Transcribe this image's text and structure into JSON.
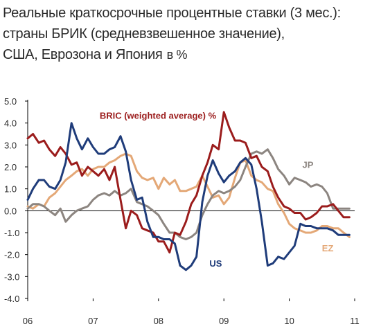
{
  "title": {
    "line1": "Реальные краткосрочные процентные ставки (3 мес.):",
    "line2": "страны БРИК (средневзвешенное значение),",
    "line3": "США, Еврозона и Япония",
    "unit": "в %"
  },
  "chart_data": {
    "type": "line",
    "ylim": [
      -4.0,
      5.0
    ],
    "yticks": [
      "5.0",
      "4.0",
      "3.0",
      "2.0",
      "1.0",
      "0.0",
      "-1.0",
      "-2.0",
      "-3.0",
      "-4.0"
    ],
    "xlim": [
      2006.0,
      2011.0
    ],
    "xticks": [
      "06",
      "07",
      "08",
      "09",
      "10",
      "11"
    ],
    "grid": false,
    "series": [
      {
        "name": "BRIC (weighted average) %",
        "label": "BRIC (weighted average) %",
        "color": "#9b1c1c",
        "x": [
          2006.0,
          2006.08,
          2006.17,
          2006.25,
          2006.33,
          2006.42,
          2006.5,
          2006.58,
          2006.67,
          2006.75,
          2006.83,
          2006.92,
          2007.0,
          2007.08,
          2007.17,
          2007.25,
          2007.33,
          2007.42,
          2007.5,
          2007.58,
          2007.67,
          2007.75,
          2007.83,
          2007.92,
          2008.0,
          2008.08,
          2008.17,
          2008.25,
          2008.33,
          2008.42,
          2008.5,
          2008.58,
          2008.67,
          2008.75,
          2008.83,
          2008.92,
          2009.0,
          2009.08,
          2009.17,
          2009.25,
          2009.33,
          2009.42,
          2009.5,
          2009.58,
          2009.67,
          2009.75,
          2009.83,
          2009.92,
          2010.0,
          2010.08,
          2010.17,
          2010.25,
          2010.33,
          2010.42,
          2010.5,
          2010.58,
          2010.67,
          2010.75,
          2010.83,
          2010.92
        ],
        "y": [
          3.3,
          3.5,
          3.1,
          3.2,
          2.8,
          2.5,
          2.9,
          2.6,
          2.1,
          2.2,
          1.6,
          2.0,
          1.8,
          1.6,
          1.9,
          1.4,
          2.0,
          0.5,
          -0.8,
          0.0,
          -0.2,
          -0.8,
          -0.9,
          -1.0,
          -1.4,
          -1.4,
          -1.9,
          -1.0,
          -1.1,
          -0.5,
          0.3,
          0.7,
          1.6,
          2.2,
          3.0,
          2.8,
          4.5,
          3.8,
          3.2,
          3.2,
          3.1,
          2.4,
          2.5,
          2.0,
          1.8,
          1.1,
          0.6,
          0.2,
          0.1,
          -0.1,
          -0.1,
          -0.4,
          -0.3,
          -0.1,
          0.2,
          0.2,
          0.3,
          0.0,
          -0.3,
          -0.3
        ]
      },
      {
        "name": "US",
        "label": "US",
        "color": "#1f3c7a",
        "x": [
          2006.0,
          2006.08,
          2006.17,
          2006.25,
          2006.33,
          2006.42,
          2006.5,
          2006.58,
          2006.67,
          2006.75,
          2006.83,
          2006.92,
          2007.0,
          2007.08,
          2007.17,
          2007.25,
          2007.33,
          2007.42,
          2007.5,
          2007.58,
          2007.67,
          2007.75,
          2007.83,
          2007.92,
          2008.0,
          2008.08,
          2008.17,
          2008.25,
          2008.33,
          2008.42,
          2008.5,
          2008.58,
          2008.67,
          2008.75,
          2008.83,
          2008.92,
          2009.0,
          2009.08,
          2009.17,
          2009.25,
          2009.33,
          2009.42,
          2009.5,
          2009.58,
          2009.67,
          2009.75,
          2009.83,
          2009.92,
          2010.0,
          2010.08,
          2010.17,
          2010.25,
          2010.33,
          2010.42,
          2010.5,
          2010.58,
          2010.67,
          2010.75,
          2010.83,
          2010.92
        ],
        "y": [
          0.5,
          1.0,
          1.4,
          1.4,
          1.1,
          1.0,
          1.4,
          2.2,
          4.0,
          3.3,
          2.8,
          3.3,
          2.9,
          2.6,
          2.6,
          2.8,
          2.9,
          3.4,
          2.7,
          1.4,
          0.5,
          0.6,
          -0.5,
          -1.2,
          -1.2,
          -1.3,
          -1.3,
          -1.5,
          -2.5,
          -2.7,
          -2.5,
          -2.1,
          0.4,
          1.6,
          2.3,
          1.7,
          1.3,
          1.6,
          1.8,
          2.2,
          2.4,
          2.1,
          1.0,
          -0.5,
          -2.5,
          -2.4,
          -2.1,
          -2.2,
          -1.9,
          -1.6,
          -0.6,
          -0.7,
          -0.7,
          -0.8,
          -0.8,
          -0.8,
          -0.9,
          -1.1,
          -1.1,
          -1.1
        ]
      },
      {
        "name": "JP",
        "label": "JP",
        "color": "#8c8580",
        "x": [
          2006.0,
          2006.08,
          2006.17,
          2006.25,
          2006.33,
          2006.42,
          2006.5,
          2006.58,
          2006.67,
          2006.75,
          2006.83,
          2006.92,
          2007.0,
          2007.08,
          2007.17,
          2007.25,
          2007.33,
          2007.42,
          2007.5,
          2007.58,
          2007.67,
          2007.75,
          2007.83,
          2007.92,
          2008.0,
          2008.08,
          2008.17,
          2008.25,
          2008.33,
          2008.42,
          2008.5,
          2008.58,
          2008.67,
          2008.75,
          2008.83,
          2008.92,
          2009.0,
          2009.08,
          2009.17,
          2009.25,
          2009.33,
          2009.42,
          2009.5,
          2009.58,
          2009.67,
          2009.75,
          2009.83,
          2009.92,
          2010.0,
          2010.08,
          2010.17,
          2010.25,
          2010.33,
          2010.42,
          2010.5,
          2010.58,
          2010.67,
          2010.75,
          2010.83,
          2010.92
        ],
        "y": [
          0.1,
          0.3,
          0.3,
          0.2,
          0.0,
          -0.2,
          0.1,
          -0.5,
          -0.2,
          0.0,
          0.1,
          0.2,
          0.5,
          0.7,
          0.8,
          0.7,
          0.9,
          0.7,
          0.8,
          1.0,
          0.4,
          0.3,
          0.2,
          0.0,
          -0.2,
          -0.6,
          -1.0,
          -1.0,
          -1.2,
          -1.3,
          -1.2,
          -1.0,
          -0.2,
          0.3,
          0.7,
          0.9,
          0.8,
          0.9,
          1.1,
          1.4,
          2.0,
          2.6,
          2.7,
          2.6,
          2.8,
          2.4,
          1.9,
          1.6,
          1.2,
          1.5,
          1.4,
          1.3,
          1.1,
          1.2,
          1.1,
          0.8,
          0.1,
          0.1,
          0.1,
          0.1
        ]
      },
      {
        "name": "EZ",
        "label": "EZ",
        "color": "#e4a877",
        "x": [
          2006.0,
          2006.08,
          2006.17,
          2006.25,
          2006.33,
          2006.42,
          2006.5,
          2006.58,
          2006.67,
          2006.75,
          2006.83,
          2006.92,
          2007.0,
          2007.08,
          2007.17,
          2007.25,
          2007.33,
          2007.42,
          2007.5,
          2007.58,
          2007.67,
          2007.75,
          2007.83,
          2007.92,
          2008.0,
          2008.08,
          2008.17,
          2008.25,
          2008.33,
          2008.42,
          2008.5,
          2008.58,
          2008.67,
          2008.75,
          2008.83,
          2008.92,
          2009.0,
          2009.08,
          2009.17,
          2009.25,
          2009.33,
          2009.42,
          2009.5,
          2009.58,
          2009.67,
          2009.75,
          2009.83,
          2009.92,
          2010.0,
          2010.08,
          2010.17,
          2010.25,
          2010.33,
          2010.42,
          2010.5,
          2010.58,
          2010.67,
          2010.75,
          2010.83,
          2010.92
        ],
        "y": [
          0.2,
          0.1,
          0.3,
          0.2,
          0.6,
          0.8,
          1.1,
          1.4,
          1.6,
          1.8,
          1.9,
          1.6,
          1.9,
          2.0,
          2.0,
          2.2,
          2.3,
          2.5,
          2.6,
          2.5,
          1.8,
          1.5,
          1.4,
          1.5,
          1.0,
          1.5,
          1.2,
          1.4,
          0.9,
          0.9,
          1.0,
          1.1,
          1.6,
          1.1,
          0.6,
          0.7,
          0.3,
          0.6,
          1.5,
          2.2,
          2.3,
          1.6,
          1.4,
          1.3,
          1.0,
          0.9,
          0.3,
          -0.1,
          -0.6,
          -0.8,
          -0.9,
          -1.0,
          -1.0,
          -0.9,
          -0.7,
          -0.7,
          -0.8,
          -0.8,
          -1.0,
          -1.2
        ]
      }
    ]
  }
}
